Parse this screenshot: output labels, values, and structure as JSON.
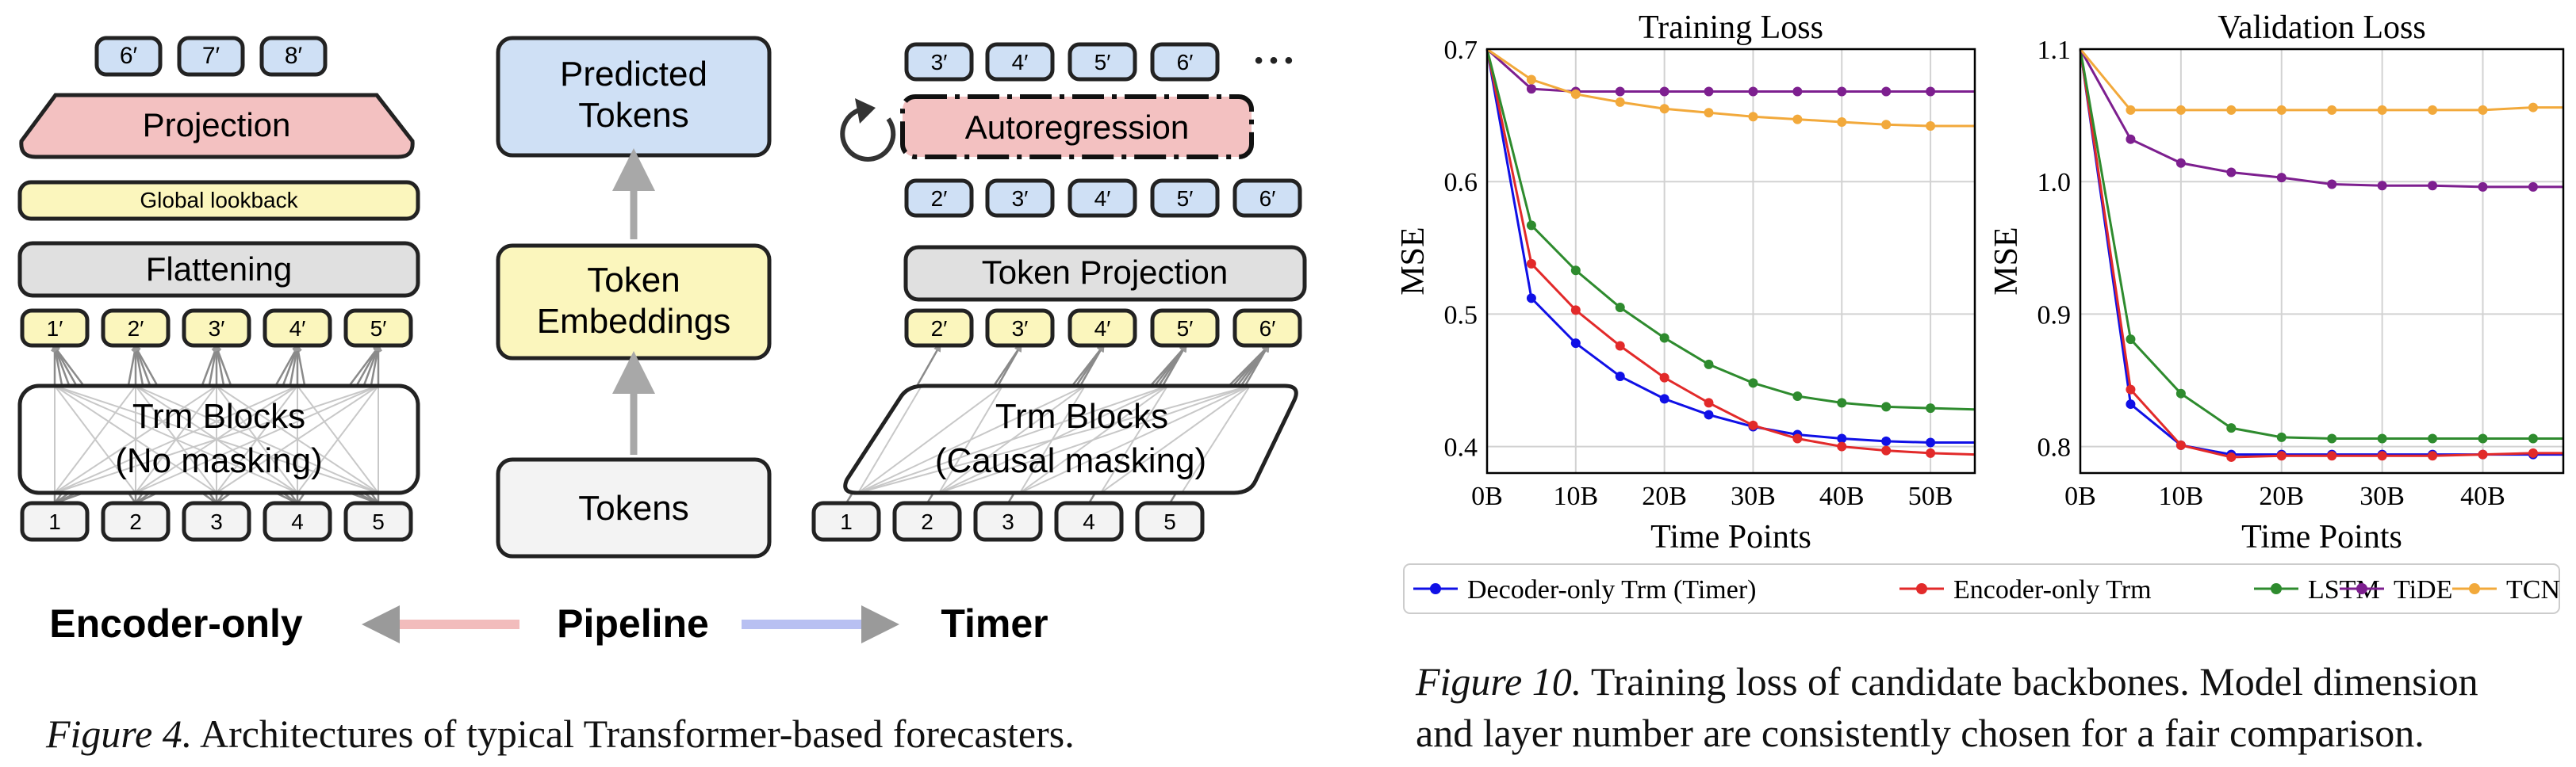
{
  "fig4": {
    "encoder": {
      "outputs": [
        "6′",
        "7′",
        "8′"
      ],
      "projection": "Projection",
      "global_lookback": "Global lookback",
      "flattening": "Flattening",
      "tokens_out": [
        "1′",
        "2′",
        "3′",
        "4′",
        "5′"
      ],
      "trm_line1": "Trm Blocks",
      "trm_line2": "(No masking)",
      "inputs": [
        "1",
        "2",
        "3",
        "4",
        "5"
      ]
    },
    "pipeline": {
      "predicted_line1": "Predicted",
      "predicted_line2": "Tokens",
      "embed_line1": "Token",
      "embed_line2": "Embeddings",
      "tokens": "Tokens"
    },
    "timer": {
      "outputs": [
        "3′",
        "4′",
        "5′",
        "6′"
      ],
      "ellipsis": "• • •",
      "autoregression": "Autoregression",
      "proj_out": [
        "2′",
        "3′",
        "4′",
        "5′",
        "6′"
      ],
      "token_projection": "Token Projection",
      "tokens_out": [
        "2′",
        "3′",
        "4′",
        "5′",
        "6′"
      ],
      "trm_line1": "Trm Blocks",
      "trm_line2": "(Causal masking)",
      "inputs": [
        "1",
        "2",
        "3",
        "4",
        "5"
      ]
    },
    "bottom": {
      "left": "Encoder-only",
      "center": "Pipeline",
      "right": "Timer"
    },
    "caption_label": "Figure 4.",
    "caption_text": " Architectures of typical Transformer-based forecasters."
  },
  "fig10": {
    "caption_label": "Figure 10.",
    "caption_line1": " Training loss of candidate backbones. Model dimension",
    "caption_line2": "and layer number are consistently chosen for a fair comparison.",
    "legend": [
      {
        "name": "Decoder-only Trm (Timer)",
        "color": "#1010e6"
      },
      {
        "name": "Encoder-only Trm",
        "color": "#e22a2a"
      },
      {
        "name": "LSTM",
        "color": "#2e8b2e"
      },
      {
        "name": "TiDE",
        "color": "#7d1f8f"
      },
      {
        "name": "TCN",
        "color": "#f2a93b"
      }
    ]
  },
  "chart_data": [
    {
      "type": "line",
      "title": "Training Loss",
      "xlabel": "Time Points",
      "ylabel": "MSE",
      "xlim": [
        0,
        55
      ],
      "ylim": [
        0.38,
        0.7
      ],
      "xticks": [
        "0B",
        "10B",
        "20B",
        "30B",
        "40B",
        "50B"
      ],
      "yticks": [
        "0.4",
        "0.5",
        "0.6",
        "0.7"
      ],
      "grid": true,
      "x": [
        0,
        5,
        10,
        15,
        20,
        25,
        30,
        35,
        40,
        45,
        50,
        55
      ],
      "series": [
        {
          "name": "Decoder-only Trm (Timer)",
          "values": [
            0.7,
            0.512,
            0.478,
            0.453,
            0.436,
            0.424,
            0.415,
            0.409,
            0.406,
            0.404,
            0.403,
            0.403
          ]
        },
        {
          "name": "Encoder-only Trm",
          "values": [
            0.7,
            0.538,
            0.503,
            0.476,
            0.452,
            0.433,
            0.416,
            0.406,
            0.4,
            0.397,
            0.395,
            0.394
          ]
        },
        {
          "name": "LSTM",
          "values": [
            0.7,
            0.567,
            0.533,
            0.505,
            0.482,
            0.462,
            0.448,
            0.438,
            0.433,
            0.43,
            0.429,
            0.428
          ]
        },
        {
          "name": "TiDE",
          "values": [
            0.7,
            0.67,
            0.668,
            0.668,
            0.668,
            0.668,
            0.668,
            0.668,
            0.668,
            0.668,
            0.668,
            0.668
          ]
        },
        {
          "name": "TCN",
          "values": [
            0.7,
            0.677,
            0.666,
            0.66,
            0.655,
            0.652,
            0.649,
            0.647,
            0.645,
            0.643,
            0.642,
            0.642
          ]
        }
      ]
    },
    {
      "type": "line",
      "title": "Validation Loss",
      "xlabel": "Time Points",
      "ylabel": "MSE",
      "xlim": [
        0,
        48
      ],
      "ylim": [
        0.78,
        1.1
      ],
      "xticks": [
        "0B",
        "10B",
        "20B",
        "30B",
        "40B"
      ],
      "yticks": [
        "0.8",
        "0.9",
        "1.0",
        "1.1"
      ],
      "grid": true,
      "x": [
        0,
        5,
        10,
        15,
        20,
        25,
        30,
        35,
        40,
        45,
        48
      ],
      "series": [
        {
          "name": "Decoder-only Trm (Timer)",
          "values": [
            1.1,
            0.832,
            0.801,
            0.794,
            0.794,
            0.794,
            0.794,
            0.794,
            0.794,
            0.794,
            0.794
          ]
        },
        {
          "name": "Encoder-only Trm",
          "values": [
            1.1,
            0.843,
            0.801,
            0.792,
            0.793,
            0.793,
            0.793,
            0.793,
            0.794,
            0.795,
            0.795
          ]
        },
        {
          "name": "LSTM",
          "values": [
            1.1,
            0.881,
            0.84,
            0.814,
            0.807,
            0.806,
            0.806,
            0.806,
            0.806,
            0.806,
            0.806
          ]
        },
        {
          "name": "TiDE",
          "values": [
            1.1,
            1.032,
            1.014,
            1.007,
            1.003,
            0.998,
            0.997,
            0.997,
            0.996,
            0.996,
            0.996
          ]
        },
        {
          "name": "TCN",
          "values": [
            1.1,
            1.054,
            1.054,
            1.054,
            1.054,
            1.054,
            1.054,
            1.054,
            1.054,
            1.056,
            1.056
          ]
        }
      ]
    }
  ]
}
